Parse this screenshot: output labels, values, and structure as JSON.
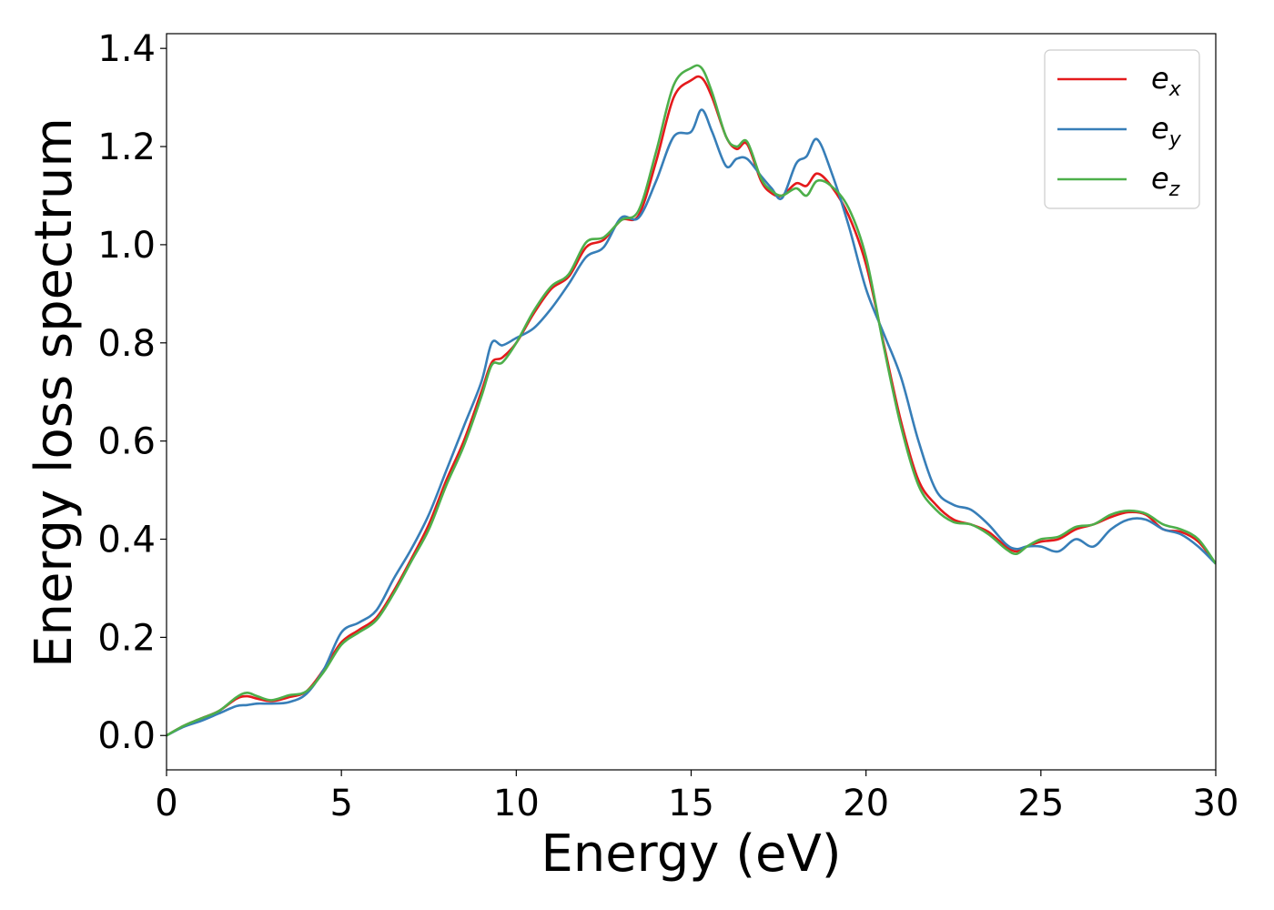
{
  "chart_data": {
    "type": "line",
    "title": "",
    "xlabel": "Energy (eV)",
    "ylabel": "Energy loss spectrum",
    "xlim": [
      0,
      30
    ],
    "ylim": [
      -0.07,
      1.43
    ],
    "xticks": [
      0,
      5,
      10,
      15,
      20,
      25,
      30
    ],
    "xtick_labels": [
      "0",
      "5",
      "10",
      "15",
      "20",
      "25",
      "30"
    ],
    "yticks": [
      0.0,
      0.2,
      0.4,
      0.6,
      0.8,
      1.0,
      1.2,
      1.4
    ],
    "ytick_labels": [
      "0.0",
      "0.2",
      "0.4",
      "0.6",
      "0.8",
      "1.0",
      "1.2",
      "1.4"
    ],
    "grid": false,
    "legend_position": "top-right",
    "x": [
      0,
      0.5,
      1,
      1.5,
      2,
      2.3,
      2.6,
      3,
      3.5,
      4,
      4.5,
      5,
      5.5,
      6,
      6.5,
      7,
      7.5,
      8,
      8.5,
      9,
      9.3,
      9.6,
      10,
      10.5,
      11,
      11.5,
      12,
      12.5,
      13,
      13.5,
      14,
      14.5,
      15,
      15.3,
      15.6,
      16,
      16.3,
      16.6,
      17,
      17.3,
      17.6,
      18,
      18.3,
      18.6,
      19,
      19.5,
      20,
      20.5,
      21,
      21.5,
      22,
      22.5,
      23,
      23.5,
      24,
      24.3,
      24.6,
      25,
      25.5,
      26,
      26.5,
      27,
      27.5,
      28,
      28.5,
      29,
      29.5,
      30
    ],
    "series": [
      {
        "name": "e_x",
        "label_main": "e",
        "label_sub": "x",
        "color": "#e41a1c",
        "values": [
          0.0,
          0.02,
          0.035,
          0.05,
          0.075,
          0.08,
          0.075,
          0.07,
          0.078,
          0.09,
          0.135,
          0.19,
          0.215,
          0.24,
          0.295,
          0.36,
          0.43,
          0.52,
          0.6,
          0.7,
          0.76,
          0.77,
          0.8,
          0.86,
          0.91,
          0.935,
          0.995,
          1.01,
          1.05,
          1.06,
          1.17,
          1.3,
          1.335,
          1.34,
          1.3,
          1.22,
          1.195,
          1.205,
          1.13,
          1.105,
          1.1,
          1.125,
          1.12,
          1.145,
          1.12,
          1.06,
          0.96,
          0.8,
          0.64,
          0.52,
          0.47,
          0.44,
          0.43,
          0.415,
          0.385,
          0.375,
          0.385,
          0.395,
          0.4,
          0.42,
          0.43,
          0.445,
          0.455,
          0.45,
          0.42,
          0.415,
          0.395,
          0.35
        ]
      },
      {
        "name": "e_y",
        "label_main": "e",
        "label_sub": "y",
        "color": "#377eb8",
        "values": [
          0.0,
          0.018,
          0.03,
          0.045,
          0.06,
          0.062,
          0.065,
          0.065,
          0.068,
          0.085,
          0.135,
          0.21,
          0.23,
          0.255,
          0.32,
          0.38,
          0.45,
          0.54,
          0.63,
          0.72,
          0.8,
          0.795,
          0.81,
          0.83,
          0.87,
          0.92,
          0.975,
          0.995,
          1.055,
          1.055,
          1.13,
          1.22,
          1.23,
          1.275,
          1.23,
          1.16,
          1.175,
          1.175,
          1.14,
          1.115,
          1.095,
          1.165,
          1.18,
          1.215,
          1.15,
          1.04,
          0.91,
          0.82,
          0.73,
          0.6,
          0.5,
          0.47,
          0.46,
          0.43,
          0.39,
          0.38,
          0.385,
          0.385,
          0.375,
          0.4,
          0.385,
          0.42,
          0.44,
          0.44,
          0.42,
          0.41,
          0.385,
          0.35
        ]
      },
      {
        "name": "e_z",
        "label_main": "e",
        "label_sub": "z",
        "color": "#4daf4a",
        "values": [
          0.0,
          0.02,
          0.035,
          0.05,
          0.078,
          0.087,
          0.08,
          0.072,
          0.082,
          0.09,
          0.13,
          0.185,
          0.21,
          0.235,
          0.29,
          0.355,
          0.42,
          0.51,
          0.59,
          0.69,
          0.755,
          0.76,
          0.8,
          0.865,
          0.915,
          0.94,
          1.005,
          1.015,
          1.05,
          1.07,
          1.19,
          1.325,
          1.36,
          1.36,
          1.31,
          1.22,
          1.2,
          1.21,
          1.135,
          1.11,
          1.1,
          1.115,
          1.1,
          1.13,
          1.12,
          1.075,
          0.975,
          0.795,
          0.63,
          0.51,
          0.46,
          0.435,
          0.43,
          0.41,
          0.38,
          0.37,
          0.385,
          0.4,
          0.405,
          0.425,
          0.43,
          0.45,
          0.458,
          0.452,
          0.43,
          0.42,
          0.4,
          0.35
        ]
      }
    ]
  }
}
